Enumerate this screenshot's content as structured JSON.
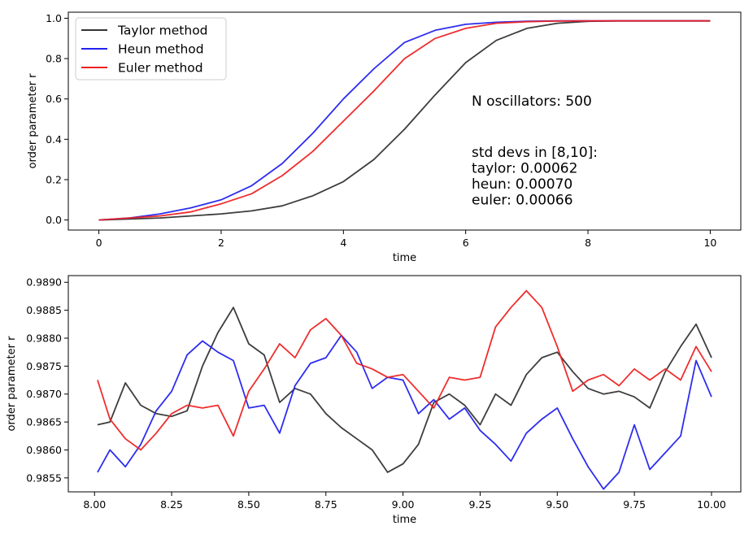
{
  "chart_data": [
    {
      "type": "line",
      "xlabel": "time",
      "ylabel": "order parameter r",
      "xlim": [
        -0.5,
        10.5
      ],
      "ylim": [
        -0.05,
        1.03
      ],
      "xticks": [
        0,
        2,
        4,
        6,
        8,
        10
      ],
      "xtick_labels": [
        "0",
        "2",
        "4",
        "6",
        "8",
        "10"
      ],
      "yticks": [
        0.0,
        0.2,
        0.4,
        0.6,
        0.8,
        1.0
      ],
      "ytick_labels": [
        "0.0",
        "0.2",
        "0.4",
        "0.6",
        "0.8",
        "1.0"
      ],
      "grid": false,
      "legend_position": "top-left",
      "series": [
        {
          "name": "Taylor method",
          "color": "#333333",
          "x": [
            0,
            0.5,
            1,
            1.5,
            2,
            2.5,
            3,
            3.5,
            4,
            4.5,
            5,
            5.5,
            6,
            6.5,
            7,
            7.5,
            8,
            8.5,
            9,
            9.5,
            10
          ],
          "y": [
            0.0,
            0.005,
            0.01,
            0.02,
            0.03,
            0.045,
            0.07,
            0.12,
            0.19,
            0.3,
            0.45,
            0.62,
            0.78,
            0.89,
            0.95,
            0.975,
            0.985,
            0.987,
            0.987,
            0.987,
            0.987
          ]
        },
        {
          "name": "Heun method",
          "color": "#2222ee",
          "x": [
            0,
            0.5,
            1,
            1.5,
            2,
            2.5,
            3,
            3.5,
            4,
            4.5,
            5,
            5.5,
            6,
            6.5,
            7,
            7.5,
            8,
            8.5,
            9,
            9.5,
            10
          ],
          "y": [
            0.0,
            0.01,
            0.03,
            0.06,
            0.1,
            0.17,
            0.28,
            0.43,
            0.6,
            0.75,
            0.88,
            0.94,
            0.97,
            0.98,
            0.985,
            0.987,
            0.987,
            0.987,
            0.987,
            0.987,
            0.987
          ]
        },
        {
          "name": "Euler method",
          "color": "#ee2222",
          "x": [
            0,
            0.5,
            1,
            1.5,
            2,
            2.5,
            3,
            3.5,
            4,
            4.5,
            5,
            5.5,
            6,
            6.5,
            7,
            7.5,
            8,
            8.5,
            9,
            9.5,
            10
          ],
          "y": [
            0.0,
            0.01,
            0.02,
            0.04,
            0.08,
            0.13,
            0.22,
            0.34,
            0.49,
            0.64,
            0.8,
            0.9,
            0.95,
            0.975,
            0.983,
            0.986,
            0.987,
            0.987,
            0.987,
            0.987,
            0.987
          ]
        }
      ],
      "annotations": [
        {
          "id": "n-osc",
          "lines": [
            "N oscillators: 500"
          ]
        },
        {
          "id": "stds",
          "lines": [
            "std devs in [8,10]:",
            "taylor: 0.00062",
            "heun: 0.00070",
            "euler: 0.00066"
          ]
        }
      ]
    },
    {
      "type": "line",
      "xlabel": "time",
      "ylabel": "order parameter r",
      "xlim": [
        7.915,
        10.095
      ],
      "ylim": [
        0.98525,
        0.98912
      ],
      "xticks": [
        8.0,
        8.25,
        8.5,
        8.75,
        9.0,
        9.25,
        9.5,
        9.75,
        10.0
      ],
      "xtick_labels": [
        "8.00",
        "8.25",
        "8.50",
        "8.75",
        "9.00",
        "9.25",
        "9.50",
        "9.75",
        "10.00"
      ],
      "yticks": [
        0.9855,
        0.986,
        0.9865,
        0.987,
        0.9875,
        0.988,
        0.9885,
        0.989
      ],
      "ytick_labels": [
        "0.9855",
        "0.9860",
        "0.9865",
        "0.9870",
        "0.9875",
        "0.9880",
        "0.9885",
        "0.9890"
      ],
      "grid": false,
      "series": [
        {
          "name": "Taylor method",
          "color": "#333333",
          "x": [
            8.01,
            8.05,
            8.1,
            8.15,
            8.2,
            8.25,
            8.3,
            8.35,
            8.4,
            8.45,
            8.5,
            8.55,
            8.6,
            8.65,
            8.7,
            8.75,
            8.8,
            8.85,
            8.9,
            8.95,
            9.0,
            9.05,
            9.1,
            9.15,
            9.2,
            9.25,
            9.3,
            9.35,
            9.4,
            9.45,
            9.5,
            9.55,
            9.6,
            9.65,
            9.7,
            9.75,
            9.8,
            9.85,
            9.9,
            9.95,
            10.0
          ],
          "y": [
            0.98645,
            0.9865,
            0.9872,
            0.9868,
            0.98665,
            0.9866,
            0.9867,
            0.9875,
            0.9881,
            0.98855,
            0.9879,
            0.9877,
            0.98685,
            0.9871,
            0.987,
            0.98665,
            0.9864,
            0.9862,
            0.986,
            0.9856,
            0.98575,
            0.9861,
            0.98685,
            0.987,
            0.9868,
            0.98645,
            0.987,
            0.9868,
            0.98735,
            0.98765,
            0.98775,
            0.9874,
            0.9871,
            0.987,
            0.98705,
            0.98695,
            0.98675,
            0.9874,
            0.98785,
            0.98825,
            0.98765
          ]
        },
        {
          "name": "Heun method",
          "color": "#2222ee",
          "x": [
            8.01,
            8.05,
            8.1,
            8.15,
            8.2,
            8.25,
            8.3,
            8.35,
            8.4,
            8.45,
            8.5,
            8.55,
            8.6,
            8.65,
            8.7,
            8.75,
            8.8,
            8.85,
            8.9,
            8.95,
            9.0,
            9.05,
            9.1,
            9.15,
            9.2,
            9.25,
            9.3,
            9.35,
            9.4,
            9.45,
            9.5,
            9.55,
            9.6,
            9.65,
            9.7,
            9.75,
            9.8,
            9.85,
            9.9,
            9.95,
            10.0
          ],
          "y": [
            0.9856,
            0.986,
            0.9857,
            0.9861,
            0.9867,
            0.98705,
            0.9877,
            0.98795,
            0.98775,
            0.9876,
            0.98675,
            0.9868,
            0.9863,
            0.98715,
            0.98755,
            0.98765,
            0.98805,
            0.98775,
            0.9871,
            0.9873,
            0.98725,
            0.98665,
            0.9869,
            0.98655,
            0.98675,
            0.98635,
            0.9861,
            0.9858,
            0.9863,
            0.98655,
            0.98675,
            0.9862,
            0.9857,
            0.9853,
            0.9856,
            0.98645,
            0.98565,
            0.98595,
            0.98625,
            0.9876,
            0.98695
          ]
        },
        {
          "name": "Euler method",
          "color": "#ee2222",
          "x": [
            8.01,
            8.05,
            8.1,
            8.15,
            8.2,
            8.25,
            8.3,
            8.35,
            8.4,
            8.45,
            8.5,
            8.55,
            8.6,
            8.65,
            8.7,
            8.75,
            8.8,
            8.85,
            8.9,
            8.95,
            9.0,
            9.05,
            9.1,
            9.15,
            9.2,
            9.25,
            9.3,
            9.35,
            9.4,
            9.45,
            9.5,
            9.55,
            9.6,
            9.65,
            9.7,
            9.75,
            9.8,
            9.85,
            9.9,
            9.95,
            10.0
          ],
          "y": [
            0.98725,
            0.98655,
            0.9862,
            0.986,
            0.9863,
            0.98665,
            0.9868,
            0.98675,
            0.9868,
            0.98625,
            0.98705,
            0.98745,
            0.9879,
            0.98765,
            0.98815,
            0.98835,
            0.98805,
            0.98755,
            0.98745,
            0.9873,
            0.98735,
            0.98705,
            0.98675,
            0.9873,
            0.98725,
            0.9873,
            0.9882,
            0.98855,
            0.98885,
            0.98855,
            0.98785,
            0.98705,
            0.98725,
            0.98735,
            0.98715,
            0.98745,
            0.98725,
            0.98745,
            0.98725,
            0.98785,
            0.9874
          ]
        }
      ]
    }
  ]
}
